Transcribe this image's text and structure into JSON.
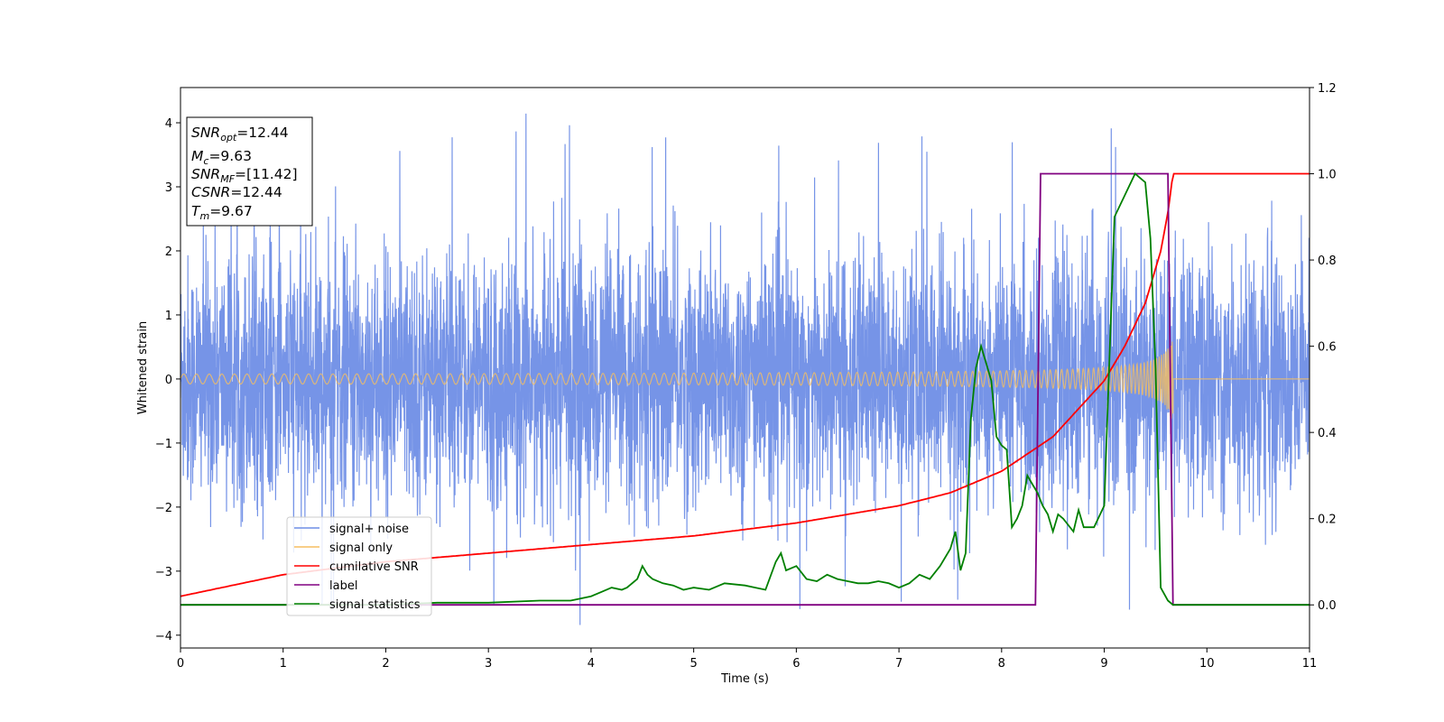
{
  "chart_data": {
    "type": "line",
    "xlabel": "Time (s)",
    "ylabel": "Whitened strain",
    "xlim": [
      0,
      11
    ],
    "ylim_left": [
      -4.2,
      4.55
    ],
    "ylim_right": [
      -0.1,
      1.2
    ],
    "x_ticks": [
      0,
      1,
      2,
      3,
      4,
      5,
      6,
      7,
      8,
      9,
      10,
      11
    ],
    "y_ticks_left": [
      -4,
      -3,
      -2,
      -1,
      0,
      1,
      2,
      3,
      4
    ],
    "y_ticks_right": [
      0.0,
      0.2,
      0.4,
      0.6,
      0.8,
      1.0,
      1.2
    ],
    "x_tick_labels": [
      "0",
      "1",
      "2",
      "3",
      "4",
      "5",
      "6",
      "7",
      "8",
      "9",
      "10",
      "11"
    ],
    "y_tick_labels_left": [
      "−4",
      "−3",
      "−2",
      "−1",
      "0",
      "1",
      "2",
      "3",
      "4"
    ],
    "y_tick_labels_right": [
      "0.0",
      "0.2",
      "0.4",
      "0.6",
      "0.8",
      "1.0",
      "1.2"
    ],
    "grid": false,
    "legend_position": "lower-left",
    "series": [
      {
        "name": "signal+ noise",
        "color": "#6f8ee6",
        "axis": "left",
        "kind": "noise",
        "noise_band": [
          -2.0,
          2.0
        ],
        "noise_extremes": [
          -3.85,
          4.17
        ]
      },
      {
        "name": "signal only",
        "color": "#f5be61",
        "axis": "left",
        "kind": "chirp",
        "merger_time": 9.67,
        "amplitude_peak": 0.78
      },
      {
        "name": "cumilative SNR",
        "color": "#ff0000",
        "axis": "right",
        "x": [
          0,
          1,
          2,
          3,
          4,
          5,
          6,
          7,
          7.5,
          8,
          8.5,
          9,
          9.2,
          9.4,
          9.55,
          9.62,
          9.67,
          11
        ],
        "y": [
          0.02,
          0.07,
          0.1,
          0.12,
          0.14,
          0.16,
          0.19,
          0.23,
          0.26,
          0.31,
          0.39,
          0.52,
          0.6,
          0.7,
          0.82,
          0.91,
          1.0,
          1.0
        ]
      },
      {
        "name": "label",
        "color": "#800080",
        "axis": "right",
        "x": [
          0,
          8.33,
          8.38,
          9.62,
          9.67,
          11
        ],
        "y": [
          0.0,
          0.0,
          1.0,
          1.0,
          0.0,
          0.0
        ]
      },
      {
        "name": "signal statistics",
        "color": "#008000",
        "axis": "right",
        "x": [
          0,
          1,
          2,
          2.5,
          3,
          3.5,
          3.8,
          4.0,
          4.1,
          4.2,
          4.3,
          4.35,
          4.45,
          4.5,
          4.55,
          4.6,
          4.7,
          4.8,
          4.9,
          5.0,
          5.15,
          5.3,
          5.5,
          5.6,
          5.7,
          5.8,
          5.85,
          5.9,
          6.0,
          6.1,
          6.2,
          6.3,
          6.4,
          6.5,
          6.6,
          6.7,
          6.8,
          6.9,
          7.0,
          7.1,
          7.2,
          7.3,
          7.4,
          7.5,
          7.55,
          7.6,
          7.65,
          7.7,
          7.75,
          7.8,
          7.9,
          7.95,
          8.0,
          8.05,
          8.1,
          8.15,
          8.2,
          8.25,
          8.3,
          8.35,
          8.4,
          8.45,
          8.5,
          8.55,
          8.6,
          8.7,
          8.75,
          8.8,
          8.9,
          9.0,
          9.1,
          9.2,
          9.3,
          9.4,
          9.45,
          9.5,
          9.55,
          9.62,
          9.67,
          11
        ],
        "y": [
          0.0,
          0.0,
          0.0,
          0.005,
          0.005,
          0.01,
          0.01,
          0.02,
          0.03,
          0.04,
          0.035,
          0.04,
          0.06,
          0.09,
          0.07,
          0.06,
          0.05,
          0.045,
          0.035,
          0.04,
          0.035,
          0.05,
          0.045,
          0.04,
          0.035,
          0.1,
          0.12,
          0.08,
          0.09,
          0.06,
          0.055,
          0.07,
          0.06,
          0.055,
          0.05,
          0.05,
          0.055,
          0.05,
          0.04,
          0.05,
          0.07,
          0.06,
          0.09,
          0.13,
          0.17,
          0.08,
          0.12,
          0.43,
          0.55,
          0.6,
          0.52,
          0.39,
          0.37,
          0.36,
          0.18,
          0.2,
          0.23,
          0.3,
          0.28,
          0.26,
          0.23,
          0.21,
          0.17,
          0.21,
          0.2,
          0.17,
          0.22,
          0.18,
          0.18,
          0.23,
          0.9,
          0.95,
          1.0,
          0.98,
          0.85,
          0.55,
          0.04,
          0.01,
          0.0,
          0.0
        ]
      }
    ],
    "info_box": [
      {
        "label": "SNR",
        "sub": "opt",
        "value": "=12.44"
      },
      {
        "label": "M",
        "sub": "c",
        "value": "=9.63"
      },
      {
        "label": "SNR",
        "sub": "MF",
        "value": "=[11.42]"
      },
      {
        "label": "CSNR",
        "sub": "",
        "value": "=12.44"
      },
      {
        "label": "T",
        "sub": "m",
        "value": "=9.67"
      }
    ]
  }
}
